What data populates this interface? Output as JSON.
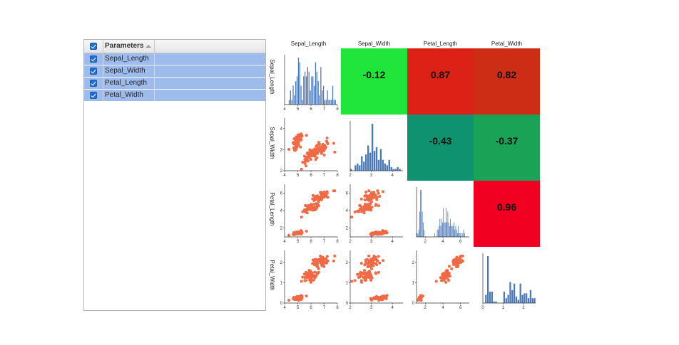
{
  "panel": {
    "header_label": "Parameters",
    "rows": [
      {
        "label": "Sepal_Length",
        "checked": true
      },
      {
        "label": "Sepal_Width",
        "checked": true
      },
      {
        "label": "Petal_Length",
        "checked": true
      },
      {
        "label": "Petal_Width",
        "checked": true
      }
    ],
    "selection_color": "#9dbcec",
    "check_color": "#1f6fd6"
  },
  "chart_data": {
    "type": "scatter-matrix",
    "variables": [
      "Sepal_Length",
      "Sepal_Width",
      "Petal_Length",
      "Petal_Width"
    ],
    "ticks": {
      "Sepal_Length": [
        4,
        5,
        6,
        7,
        8
      ],
      "Sepal_Width": [
        2,
        3,
        4
      ],
      "Petal_Length": [
        2,
        4,
        6
      ],
      "Petal_Width": [
        0,
        1,
        2
      ]
    },
    "ranges": {
      "Sepal_Length": [
        4,
        8
      ],
      "Sepal_Width": [
        2,
        4.5
      ],
      "Petal_Length": [
        1,
        7
      ],
      "Petal_Width": [
        0,
        2.6
      ]
    },
    "correlations": [
      {
        "row": 0,
        "col": 1,
        "value": "-0.12",
        "color": "#1fe53a"
      },
      {
        "row": 0,
        "col": 2,
        "value": "0.87",
        "color": "#db2115"
      },
      {
        "row": 0,
        "col": 3,
        "value": "0.82",
        "color": "#cc2d14"
      },
      {
        "row": 1,
        "col": 2,
        "value": "-0.43",
        "color": "#0f9270"
      },
      {
        "row": 1,
        "col": 3,
        "value": "-0.37",
        "color": "#1aa256"
      },
      {
        "row": 2,
        "col": 3,
        "value": "0.96",
        "color": "#f20021"
      }
    ],
    "histograms": {
      "Sepal_Length": {
        "start": 4.3,
        "width": 0.1,
        "counts": [
          1,
          3,
          1,
          4,
          2,
          5,
          6,
          10,
          9,
          4,
          1,
          6,
          7,
          6,
          8,
          7,
          3,
          6,
          6,
          4,
          9,
          7,
          5,
          2,
          8,
          3,
          4,
          1,
          1,
          3,
          1,
          1,
          1,
          4,
          1,
          1
        ]
      },
      "Sepal_Width": {
        "start": 2.0,
        "width": 0.1,
        "counts": [
          1,
          0,
          3,
          4,
          3,
          8,
          5,
          9,
          14,
          10,
          26,
          11,
          13,
          6,
          12,
          6,
          4,
          3,
          6,
          2,
          1,
          1,
          2,
          1
        ]
      },
      "Petal_Length": {
        "start": 1.0,
        "width": 0.1,
        "counts": [
          1,
          1,
          2,
          7,
          13,
          13,
          7,
          4,
          2,
          0,
          0,
          0,
          0,
          0,
          0,
          0,
          0,
          0,
          0,
          0,
          1,
          0,
          0,
          2,
          2,
          3,
          5,
          3,
          5,
          4,
          8,
          4,
          4,
          8,
          4,
          7,
          4,
          3,
          5,
          3,
          3,
          3,
          4,
          2,
          3,
          2,
          1,
          3,
          1,
          1,
          1,
          0,
          1,
          2,
          1,
          0,
          0,
          0,
          0
        ]
      },
      "Petal_Width": {
        "start": 0.1,
        "width": 0.1,
        "counts": [
          5,
          29,
          7,
          7,
          1,
          1,
          0,
          0,
          0,
          7,
          3,
          5,
          13,
          8,
          12,
          4,
          2,
          12,
          5,
          6,
          6,
          3,
          8,
          3,
          3
        ]
      }
    },
    "point_color": "#ef6a45",
    "bar_color": "#4a78b8"
  }
}
